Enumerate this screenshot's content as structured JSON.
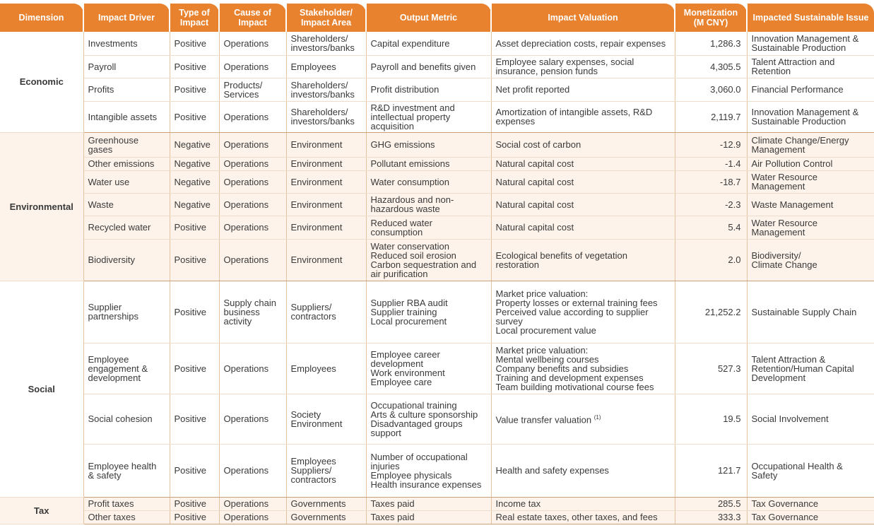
{
  "table": {
    "headers": [
      "Dimension",
      "Impact Driver",
      "Type of Impact",
      "Cause of Impact",
      "Stakeholder/ Impact Area",
      "Output Metric",
      "Impact Valuation",
      "Monetization (M CNY)",
      "Impacted Sustainable Issue"
    ],
    "groups": [
      {
        "dimension": "Economic",
        "rows": [
          [
            "Investments",
            "Positive",
            "Operations",
            "Shareholders/ investors/banks",
            "Capital expenditure",
            "Asset depreciation costs, repair expenses",
            "1,286.3",
            "Innovation Management & Sustainable Production"
          ],
          [
            "Payroll",
            "Positive",
            "Operations",
            "Employees",
            "Payroll and benefits given",
            "Employee salary expenses, social insurance, pension funds",
            "4,305.5",
            "Talent Attraction and Retention"
          ],
          [
            "Profits",
            "Positive",
            "Products/ Services",
            "Shareholders/ investors/banks",
            "Profit distribution",
            "Net profit reported",
            "3,060.0",
            "Financial Performance"
          ],
          [
            "Intangible assets",
            "Positive",
            "Operations",
            "Shareholders/ investors/banks",
            "R&D investment and intellectual property acquisition",
            "Amortization of intangible assets, R&D expenses",
            "2,119.7",
            "Innovation Management & Sustainable Production"
          ]
        ]
      },
      {
        "dimension": "Environmental",
        "rows": [
          [
            "Greenhouse gases",
            "Negative",
            "Operations",
            "Environment",
            "GHG emissions",
            "Social cost of carbon",
            "-12.9",
            "Climate Change/Energy Management"
          ],
          [
            "Other emissions",
            "Negative",
            "Operations",
            "Environment",
            "Pollutant emissions",
            "Natural capital cost",
            "-1.4",
            "Air Pollution Control"
          ],
          [
            "Water use",
            "Negative",
            "Operations",
            "Environment",
            "Water consumption",
            "Natural capital cost",
            "-18.7",
            "Water Resource Management"
          ],
          [
            "Waste",
            "Negative",
            "Operations",
            "Environment",
            "Hazardous and non-hazardous waste",
            "Natural capital cost",
            "-2.3",
            "Waste Management"
          ],
          [
            "Recycled water",
            "Positive",
            "Operations",
            "Environment",
            "Reduced water consumption",
            "Natural capital cost",
            "5.4",
            "Water Resource Management"
          ],
          [
            "Biodiversity",
            "Positive",
            "Operations",
            "Environment",
            [
              "Water conservation",
              "Reduced soil erosion",
              "Carbon sequestration and air purification"
            ],
            "Ecological benefits of vegetation restoration",
            "2.0",
            [
              "Biodiversity/",
              "Climate Change"
            ]
          ]
        ]
      },
      {
        "dimension": "Social",
        "rows": [
          [
            "Supplier partnerships",
            "Positive",
            "Supply chain business activity",
            "Suppliers/ contractors",
            [
              "Supplier RBA audit",
              "Supplier training",
              "Local procurement"
            ],
            [
              "Market price valuation:",
              "Property losses or external training fees",
              "Perceived value according to supplier survey",
              "Local procurement value"
            ],
            "21,252.2",
            "Sustainable Supply Chain"
          ],
          [
            "Employee engagement & development",
            "Positive",
            "Operations",
            "Employees",
            [
              "Employee career development",
              "Work environment",
              "Employee care"
            ],
            [
              "Market price valuation:",
              "Mental wellbeing courses",
              "Company benefits and subsidies",
              "Training and development expenses",
              "Team building motivational course fees"
            ],
            "527.3",
            "Talent Attraction & Retention/Human Capital Development"
          ],
          [
            "Social cohesion",
            "Positive",
            "Operations",
            [
              "Society",
              "Environment"
            ],
            [
              "Occupational training",
              "Arts & culture sponsorship",
              "Disadvantaged groups support"
            ],
            {
              "text": "Value transfer valuation",
              "note": "(1)"
            },
            "19.5",
            "Social Involvement"
          ],
          [
            "Employee health & safety",
            "Positive",
            "Operations",
            [
              "Employees",
              "Suppliers/ contractors"
            ],
            [
              "Number of occupational injuries",
              "Employee physicals",
              "Health insurance expenses"
            ],
            "Health and safety expenses",
            "121.7",
            "Occupational Health & Safety"
          ]
        ]
      },
      {
        "dimension": "Tax",
        "rows": [
          [
            "Profit taxes",
            "Positive",
            "Operations",
            "Governments",
            "Taxes paid",
            "Income tax",
            "285.5",
            "Tax Governance"
          ],
          [
            "Other taxes",
            "Positive",
            "Operations",
            "Governments",
            "Taxes paid",
            "Real estate taxes, other taxes, and fees",
            "333.3",
            "Tax Governance"
          ]
        ]
      }
    ]
  }
}
